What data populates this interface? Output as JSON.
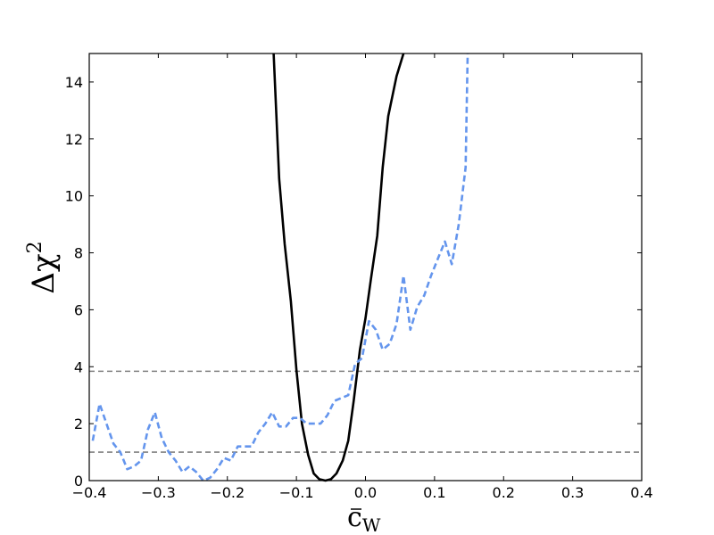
{
  "chart_data": {
    "type": "line",
    "title": "",
    "xlabel": {
      "base": "c",
      "sub": "W"
    },
    "ylabel": {
      "base": "Δχ",
      "sup": "2"
    },
    "xlim": [
      -0.4,
      0.4
    ],
    "ylim": [
      0,
      15
    ],
    "x_ticks": [
      "−0.4",
      "−0.3",
      "−0.2",
      "−0.1",
      "0.0",
      "0.1",
      "0.2",
      "0.3",
      "0.4"
    ],
    "y_ticks": [
      "0",
      "2",
      "4",
      "6",
      "8",
      "10",
      "12",
      "14"
    ],
    "grid": false,
    "reference_lines": [
      {
        "y": 1.0,
        "style": "dashed",
        "color": "#808080"
      },
      {
        "y": 3.84,
        "style": "dashed",
        "color": "#808080"
      }
    ],
    "series": [
      {
        "style": "solid",
        "color": "#000000",
        "x": [
          -0.133,
          -0.125,
          -0.117,
          -0.108,
          -0.1,
          -0.092,
          -0.083,
          -0.075,
          -0.067,
          -0.058,
          -0.05,
          -0.042,
          -0.033,
          -0.025,
          -0.017,
          -0.008,
          0.0,
          0.008,
          0.017,
          0.025,
          0.033,
          0.045,
          0.055
        ],
        "y": [
          15.0,
          10.6,
          8.3,
          6.3,
          3.9,
          2.0,
          0.9,
          0.25,
          0.05,
          0.0,
          0.05,
          0.25,
          0.7,
          1.4,
          2.8,
          4.6,
          5.7,
          7.1,
          8.6,
          11.0,
          12.8,
          14.2,
          15.0
        ]
      },
      {
        "style": "dashed",
        "color": "#6495ED",
        "x": [
          -0.395,
          -0.385,
          -0.375,
          -0.365,
          -0.355,
          -0.345,
          -0.335,
          -0.325,
          -0.315,
          -0.305,
          -0.295,
          -0.285,
          -0.275,
          -0.265,
          -0.255,
          -0.245,
          -0.235,
          -0.225,
          -0.215,
          -0.205,
          -0.195,
          -0.185,
          -0.175,
          -0.165,
          -0.155,
          -0.145,
          -0.135,
          -0.125,
          -0.115,
          -0.105,
          -0.095,
          -0.085,
          -0.075,
          -0.065,
          -0.055,
          -0.045,
          -0.035,
          -0.025,
          -0.015,
          -0.005,
          0.005,
          0.015,
          0.025,
          0.035,
          0.045,
          0.055,
          0.065,
          0.075,
          0.085,
          0.095,
          0.105,
          0.115,
          0.125,
          0.135,
          0.145,
          0.148
        ],
        "y": [
          1.4,
          2.7,
          2.0,
          1.3,
          1.0,
          0.4,
          0.5,
          0.7,
          1.8,
          2.4,
          1.5,
          1.0,
          0.7,
          0.3,
          0.5,
          0.3,
          0.0,
          0.1,
          0.4,
          0.8,
          0.7,
          1.2,
          1.2,
          1.2,
          1.7,
          2.0,
          2.4,
          1.9,
          1.9,
          2.2,
          2.2,
          2.0,
          2.0,
          2.0,
          2.3,
          2.8,
          2.9,
          3.0,
          4.1,
          4.3,
          5.6,
          5.3,
          4.6,
          4.8,
          5.5,
          7.2,
          5.3,
          6.1,
          6.5,
          7.2,
          7.8,
          8.4,
          7.6,
          9.0,
          11.0,
          15.0
        ]
      }
    ]
  }
}
